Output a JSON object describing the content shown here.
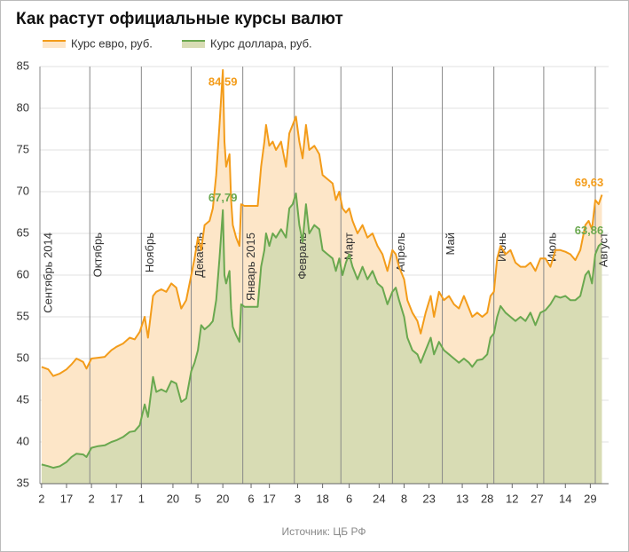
{
  "chart_data": {
    "type": "area",
    "title": "Как растут официальные курсы валют",
    "source": "Источник: ЦБ РФ",
    "x": [
      1,
      5,
      8,
      12,
      16,
      19,
      22,
      26,
      28,
      31,
      35,
      39,
      43,
      46,
      50,
      54,
      57,
      60,
      63,
      65,
      68,
      70,
      73,
      76,
      79,
      82,
      85,
      88,
      91,
      93,
      95,
      97,
      99,
      102,
      104,
      106,
      108,
      110,
      111,
      112,
      114,
      115,
      116,
      118,
      120,
      121,
      123,
      131,
      133,
      135,
      136,
      138,
      140,
      142,
      145,
      148,
      150,
      152,
      154,
      156,
      158,
      160,
      162,
      165,
      168,
      170,
      173,
      176,
      178,
      180,
      182,
      184,
      186,
      188,
      191,
      194,
      197,
      200,
      203,
      206,
      209,
      212,
      214,
      216,
      219,
      221,
      224,
      227,
      229,
      232,
      235,
      237,
      240,
      243,
      246,
      249,
      252,
      255,
      258,
      260,
      263,
      266,
      269,
      271,
      273,
      275,
      277,
      280,
      283,
      286,
      289,
      292,
      295,
      298,
      301,
      304,
      307,
      310,
      313,
      316,
      319,
      322,
      325,
      328,
      330,
      332,
      334,
      336,
      338
    ],
    "series": [
      {
        "name": "Курс евро, руб.",
        "color": "#f39c1a",
        "fill": "#fde6c8",
        "values": [
          49.0,
          48.7,
          47.9,
          48.2,
          48.7,
          49.3,
          50.0,
          49.6,
          48.8,
          50.0,
          50.1,
          50.2,
          51.0,
          51.4,
          51.8,
          52.5,
          52.3,
          53.2,
          55.0,
          52.5,
          57.5,
          58.0,
          58.3,
          58.0,
          59.0,
          58.5,
          56.0,
          57.0,
          60.0,
          62.0,
          64.5,
          63.0,
          66.0,
          66.5,
          68.0,
          72.0,
          78.0,
          84.59,
          76.0,
          73.0,
          74.5,
          69.0,
          66.0,
          64.5,
          63.5,
          68.5,
          68.3,
          68.3,
          73.0,
          76.0,
          78.0,
          75.5,
          76.0,
          75.0,
          76.0,
          73.0,
          77.0,
          78.0,
          79.0,
          76.0,
          74.0,
          78.0,
          75.0,
          75.5,
          74.5,
          72.0,
          71.5,
          71.0,
          69.0,
          70.0,
          68.0,
          67.5,
          68.0,
          66.5,
          65.0,
          66.0,
          64.5,
          65.0,
          63.5,
          62.5,
          60.5,
          63.0,
          62.5,
          61.0,
          59.5,
          57.0,
          55.5,
          54.5,
          53.0,
          55.5,
          57.5,
          55.0,
          58.0,
          57.0,
          57.5,
          56.5,
          56.0,
          57.5,
          56.0,
          55.0,
          55.5,
          55.0,
          55.5,
          57.5,
          58.0,
          62.0,
          63.5,
          62.5,
          63.0,
          61.5,
          61.0,
          61.0,
          61.5,
          60.5,
          62.0,
          62.0,
          61.0,
          63.0,
          63.0,
          62.8,
          62.5,
          61.8,
          63.0,
          66.0,
          66.5,
          65.5,
          69.0,
          68.5,
          69.63
        ],
        "value_labels": {
          "37": "84,59",
          "128": "69,63"
        }
      },
      {
        "name": "Курс доллара, руб.",
        "color": "#6aa84f",
        "fill": "#d8dcb4",
        "values": [
          37.3,
          37.1,
          36.9,
          37.1,
          37.6,
          38.2,
          38.6,
          38.5,
          38.2,
          39.3,
          39.5,
          39.6,
          40.0,
          40.2,
          40.6,
          41.2,
          41.3,
          42.0,
          44.5,
          43.0,
          47.8,
          46.0,
          46.3,
          46.0,
          47.3,
          47.0,
          44.8,
          45.2,
          48.5,
          49.5,
          51.0,
          54.0,
          53.5,
          54.0,
          54.5,
          57.0,
          62.0,
          67.79,
          60.0,
          59.0,
          60.5,
          56.0,
          53.8,
          52.8,
          52.0,
          56.5,
          56.2,
          56.2,
          61.0,
          63.0,
          65.0,
          63.5,
          65.0,
          64.5,
          65.5,
          64.5,
          68.0,
          68.5,
          69.8,
          66.0,
          64.0,
          68.5,
          65.0,
          66.0,
          65.5,
          63.0,
          62.5,
          62.0,
          60.5,
          62.0,
          60.0,
          61.5,
          62.5,
          61.0,
          59.5,
          61.0,
          59.5,
          60.5,
          59.0,
          58.5,
          56.5,
          58.0,
          58.5,
          57.0,
          55.0,
          52.5,
          51.0,
          50.5,
          49.5,
          51.0,
          52.5,
          50.5,
          52.0,
          51.0,
          50.5,
          50.0,
          49.5,
          50.0,
          49.5,
          49.0,
          49.8,
          49.9,
          50.5,
          52.5,
          53.0,
          55.0,
          56.3,
          55.5,
          55.0,
          54.5,
          55.0,
          54.5,
          55.5,
          54.0,
          55.5,
          55.8,
          56.5,
          57.5,
          57.3,
          57.5,
          57.0,
          57.0,
          57.5,
          60.0,
          60.5,
          59.0,
          62.5,
          63.5,
          63.86
        ],
        "value_labels": {
          "37": "67,79",
          "128": "63,86"
        }
      }
    ],
    "xlim": [
      0,
      342
    ],
    "xticks": [
      {
        "value": 1,
        "label": "2"
      },
      {
        "value": 16,
        "label": "17"
      },
      {
        "value": 31,
        "label": "2"
      },
      {
        "value": 46,
        "label": "17"
      },
      {
        "value": 61,
        "label": "1"
      },
      {
        "value": 80,
        "label": "20"
      },
      {
        "value": 95,
        "label": "5"
      },
      {
        "value": 110,
        "label": "20"
      },
      {
        "value": 127,
        "label": "6"
      },
      {
        "value": 138,
        "label": "17"
      },
      {
        "value": 155,
        "label": "3"
      },
      {
        "value": 170,
        "label": "18"
      },
      {
        "value": 186,
        "label": "6"
      },
      {
        "value": 204,
        "label": "24"
      },
      {
        "value": 219,
        "label": "8"
      },
      {
        "value": 234,
        "label": "23"
      },
      {
        "value": 254,
        "label": "13"
      },
      {
        "value": 269,
        "label": "28"
      },
      {
        "value": 284,
        "label": "12"
      },
      {
        "value": 299,
        "label": "27"
      },
      {
        "value": 316,
        "label": "14"
      },
      {
        "value": 331,
        "label": "29"
      }
    ],
    "month_lines": [
      {
        "value": 0,
        "label": "Сентябрь 2014"
      },
      {
        "value": 30,
        "label": "Октябрь"
      },
      {
        "value": 61,
        "label": "Ноябрь"
      },
      {
        "value": 91,
        "label": "Декабрь"
      },
      {
        "value": 122,
        "label": "Январь 2015"
      },
      {
        "value": 153,
        "label": "Февраль"
      },
      {
        "value": 181,
        "label": "Март"
      },
      {
        "value": 212,
        "label": "Апрель"
      },
      {
        "value": 242,
        "label": "Май"
      },
      {
        "value": 273,
        "label": "Июнь"
      },
      {
        "value": 303,
        "label": "Июль"
      },
      {
        "value": 334,
        "label": "Август"
      }
    ],
    "ylim": [
      35,
      85
    ],
    "yticks": [
      35,
      40,
      45,
      50,
      55,
      60,
      65,
      70,
      75,
      80,
      85
    ],
    "grid": true
  }
}
